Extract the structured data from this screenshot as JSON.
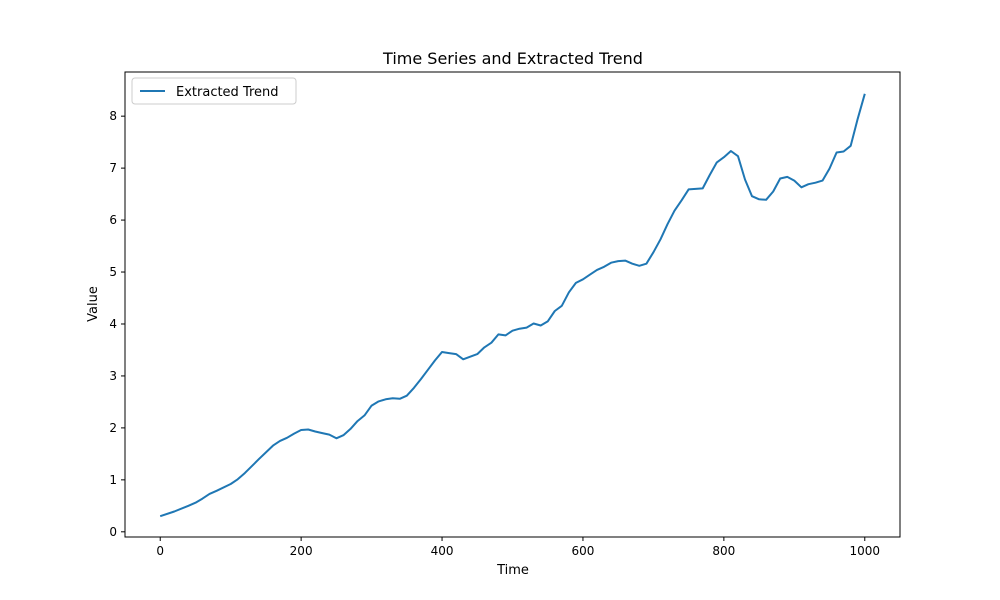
{
  "chart_data": {
    "type": "line",
    "title": "Time Series and Extracted Trend",
    "xlabel": "Time",
    "ylabel": "Value",
    "xlim": [
      -50,
      1050
    ],
    "ylim": [
      -0.1,
      8.85
    ],
    "xticks": [
      0,
      200,
      400,
      600,
      800,
      1000
    ],
    "yticks": [
      0,
      1,
      2,
      3,
      4,
      5,
      6,
      7,
      8
    ],
    "grid": false,
    "legend": {
      "position": "upper-left",
      "entries": [
        "Extracted Trend"
      ]
    },
    "series": [
      {
        "name": "Extracted Trend",
        "color": "#1f77b4",
        "x": [
          0,
          20,
          40,
          50,
          60,
          70,
          80,
          100,
          110,
          120,
          140,
          160,
          170,
          180,
          190,
          200,
          210,
          220,
          230,
          240,
          250,
          260,
          270,
          280,
          290,
          300,
          310,
          320,
          330,
          340,
          350,
          360,
          370,
          380,
          390,
          400,
          410,
          420,
          430,
          440,
          450,
          460,
          470,
          480,
          490,
          500,
          510,
          520,
          530,
          540,
          550,
          560,
          570,
          580,
          590,
          600,
          610,
          620,
          630,
          640,
          650,
          660,
          670,
          680,
          690,
          700,
          710,
          720,
          730,
          740,
          750,
          760,
          770,
          780,
          790,
          800,
          810,
          820,
          830,
          840,
          850,
          860,
          870,
          880,
          890,
          900,
          910,
          920,
          930,
          940,
          950,
          960,
          970,
          980,
          990,
          1000
        ],
        "values": [
          0.3,
          0.39,
          0.5,
          0.56,
          0.64,
          0.73,
          0.79,
          0.92,
          1.01,
          1.13,
          1.4,
          1.66,
          1.75,
          1.81,
          1.89,
          1.96,
          1.97,
          1.93,
          1.9,
          1.87,
          1.8,
          1.86,
          1.98,
          2.13,
          2.24,
          2.43,
          2.51,
          2.55,
          2.57,
          2.56,
          2.62,
          2.77,
          2.94,
          3.12,
          3.3,
          3.46,
          3.44,
          3.42,
          3.32,
          3.37,
          3.42,
          3.55,
          3.64,
          3.8,
          3.78,
          3.87,
          3.91,
          3.93,
          4.01,
          3.97,
          4.05,
          4.25,
          4.35,
          4.61,
          4.79,
          4.86,
          4.95,
          5.04,
          5.1,
          5.18,
          5.21,
          5.22,
          5.16,
          5.12,
          5.16,
          5.38,
          5.63,
          5.92,
          6.18,
          6.38,
          6.59,
          6.6,
          6.61,
          6.87,
          7.11,
          7.21,
          7.33,
          7.23,
          6.78,
          6.46,
          6.4,
          6.39,
          6.55,
          6.8,
          6.83,
          6.76,
          6.63,
          6.69,
          6.72,
          6.76,
          6.99,
          7.3,
          7.32,
          7.43,
          7.95,
          8.43
        ]
      }
    ]
  }
}
